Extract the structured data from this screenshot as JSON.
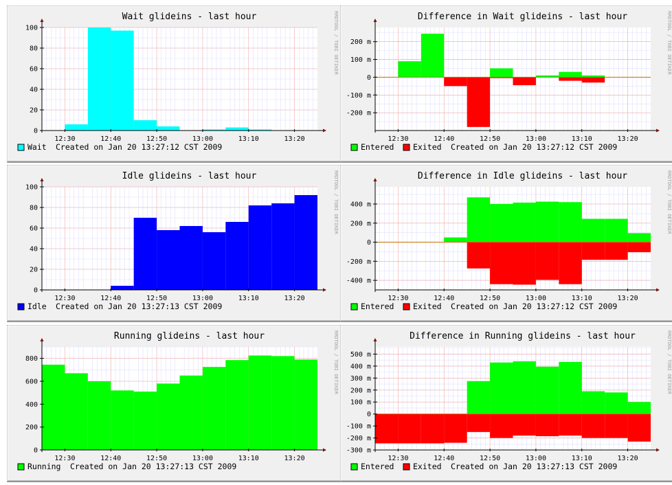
{
  "panels": [
    {
      "title": "Wait glideins - last hour",
      "type": "bar",
      "xlim": [
        0,
        60
      ],
      "ylim": [
        0,
        100
      ],
      "yticks": [
        0,
        20,
        40,
        60,
        80,
        100
      ],
      "x_tick_labels": [
        "12:30",
        "12:40",
        "12:50",
        "13:00",
        "13:10",
        "13:20"
      ],
      "series": [
        {
          "name": "Wait",
          "color": "#00ffff",
          "values": [
            0,
            6,
            100,
            97,
            10,
            4,
            0,
            1,
            3,
            1,
            0,
            0
          ]
        }
      ],
      "legend": [
        "Wait"
      ],
      "created": "Created on Jan 20 13:27:12 CST 2009"
    },
    {
      "title": "Difference in Wait glideins - last hour",
      "type": "bar",
      "xlim": [
        0,
        60
      ],
      "ylim": [
        -300,
        280
      ],
      "yticks": [
        -200,
        -100,
        0,
        100,
        200
      ],
      "ytick_labels": [
        "-200 m",
        "-100 m",
        "0",
        "100 m",
        "200 m"
      ],
      "x_tick_labels": [
        "12:30",
        "12:40",
        "12:50",
        "13:00",
        "13:10",
        "13:20"
      ],
      "series": [
        {
          "name": "Entered",
          "color": "#00ff00",
          "values": [
            0,
            90,
            245,
            0,
            0,
            50,
            0,
            10,
            30,
            10,
            0,
            0
          ]
        },
        {
          "name": "Exited",
          "color": "#ff0000",
          "values": [
            0,
            0,
            0,
            -50,
            -280,
            -5,
            -45,
            0,
            -20,
            -30,
            0,
            0
          ]
        }
      ],
      "legend": [
        "Entered",
        "Exited"
      ],
      "created": "Created on Jan 20 13:27:12 CST 2009"
    },
    {
      "title": "Idle glideins - last hour",
      "type": "bar",
      "xlim": [
        0,
        60
      ],
      "ylim": [
        0,
        100
      ],
      "yticks": [
        0,
        20,
        40,
        60,
        80,
        100
      ],
      "x_tick_labels": [
        "12:30",
        "12:40",
        "12:50",
        "13:00",
        "13:10",
        "13:20"
      ],
      "series": [
        {
          "name": "Idle",
          "color": "#0000ff",
          "values": [
            0,
            0,
            0,
            4,
            70,
            58,
            62,
            56,
            66,
            82,
            84,
            92
          ]
        }
      ],
      "legend": [
        "Idle"
      ],
      "created": "Created on Jan 20 13:27:13 CST 2009"
    },
    {
      "title": "Difference in Idle glideins - last hour",
      "type": "bar",
      "xlim": [
        0,
        60
      ],
      "ylim": [
        -500,
        580
      ],
      "yticks": [
        -400,
        -200,
        0,
        200,
        400
      ],
      "ytick_labels": [
        "-400 m",
        "-200 m",
        "0",
        "200 m",
        "400 m"
      ],
      "x_tick_labels": [
        "12:30",
        "12:40",
        "12:50",
        "13:00",
        "13:10",
        "13:20"
      ],
      "series": [
        {
          "name": "Entered",
          "color": "#00ff00",
          "values": [
            0,
            0,
            0,
            50,
            470,
            400,
            415,
            425,
            420,
            245,
            245,
            95
          ]
        },
        {
          "name": "Exited",
          "color": "#ff0000",
          "values": [
            0,
            0,
            0,
            0,
            -275,
            -440,
            -445,
            -395,
            -440,
            -185,
            -185,
            -105
          ]
        }
      ],
      "legend": [
        "Entered",
        "Exited"
      ],
      "created": "Created on Jan 20 13:27:12 CST 2009"
    },
    {
      "title": "Running glideins - last hour",
      "type": "bar",
      "xlim": [
        0,
        60
      ],
      "ylim": [
        0,
        900
      ],
      "yticks": [
        0,
        200,
        400,
        600,
        800
      ],
      "x_tick_labels": [
        "12:30",
        "12:40",
        "12:50",
        "13:00",
        "13:10",
        "13:20"
      ],
      "series": [
        {
          "name": "Running",
          "color": "#00ff00",
          "values": [
            745,
            670,
            600,
            520,
            510,
            580,
            650,
            725,
            785,
            825,
            820,
            790
          ]
        }
      ],
      "legend": [
        "Running"
      ],
      "created": "Created on Jan 20 13:27:13 CST 2009"
    },
    {
      "title": "Difference in Running glideins - last hour",
      "type": "bar",
      "xlim": [
        0,
        60
      ],
      "ylim": [
        -300,
        560
      ],
      "yticks": [
        -300,
        -200,
        -100,
        0,
        100,
        200,
        300,
        400,
        500
      ],
      "ytick_labels": [
        "-300 m",
        "-200 m",
        "-100 m",
        "0",
        "100 m",
        "200 m",
        "300 m",
        "400 m",
        "500 m"
      ],
      "x_tick_labels": [
        "12:30",
        "12:40",
        "12:50",
        "13:00",
        "13:10",
        "13:20"
      ],
      "series": [
        {
          "name": "Entered",
          "color": "#00ff00",
          "values": [
            0,
            0,
            0,
            0,
            275,
            430,
            440,
            395,
            435,
            190,
            180,
            100
          ]
        },
        {
          "name": "Exited",
          "color": "#ff0000",
          "values": [
            -245,
            -245,
            -245,
            -240,
            -150,
            -200,
            -180,
            -185,
            -180,
            -200,
            -200,
            -230
          ]
        }
      ],
      "legend": [
        "Entered",
        "Exited"
      ],
      "created": "Created on Jan 20 13:27:13 CST 2009"
    }
  ],
  "watermark": "RRDTOOL / TOBI OETIKER",
  "chart_data": [
    {
      "type": "bar",
      "title": "Wait glideins - last hour",
      "categories": [
        "12:25",
        "12:30",
        "12:35",
        "12:40",
        "12:45",
        "12:50",
        "12:55",
        "13:00",
        "13:05",
        "13:10",
        "13:15",
        "13:20"
      ],
      "series": [
        {
          "name": "Wait",
          "values": [
            0,
            6,
            100,
            97,
            10,
            4,
            0,
            1,
            3,
            1,
            0,
            0
          ]
        }
      ],
      "ylim": [
        0,
        100
      ]
    },
    {
      "type": "bar",
      "title": "Difference in Wait glideins - last hour",
      "categories": [
        "12:25",
        "12:30",
        "12:35",
        "12:40",
        "12:45",
        "12:50",
        "12:55",
        "13:00",
        "13:05",
        "13:10",
        "13:15",
        "13:20"
      ],
      "series": [
        {
          "name": "Entered",
          "values": [
            0,
            90,
            245,
            0,
            0,
            50,
            0,
            10,
            30,
            10,
            0,
            0
          ]
        },
        {
          "name": "Exited",
          "values": [
            0,
            0,
            0,
            -50,
            -280,
            -5,
            -45,
            0,
            -20,
            -30,
            0,
            0
          ]
        }
      ]
    },
    {
      "type": "bar",
      "title": "Idle glideins - last hour",
      "categories": [
        "12:25",
        "12:30",
        "12:35",
        "12:40",
        "12:45",
        "12:50",
        "12:55",
        "13:00",
        "13:05",
        "13:10",
        "13:15",
        "13:20"
      ],
      "series": [
        {
          "name": "Idle",
          "values": [
            0,
            0,
            0,
            4,
            70,
            58,
            62,
            56,
            66,
            82,
            84,
            92
          ]
        }
      ],
      "ylim": [
        0,
        100
      ]
    },
    {
      "type": "bar",
      "title": "Difference in Idle glideins - last hour",
      "categories": [
        "12:25",
        "12:30",
        "12:35",
        "12:40",
        "12:45",
        "12:50",
        "12:55",
        "13:00",
        "13:05",
        "13:10",
        "13:15",
        "13:20"
      ],
      "series": [
        {
          "name": "Entered",
          "values": [
            0,
            0,
            0,
            50,
            470,
            400,
            415,
            425,
            420,
            245,
            245,
            95
          ]
        },
        {
          "name": "Exited",
          "values": [
            0,
            0,
            0,
            0,
            -275,
            -440,
            -445,
            -395,
            -440,
            -185,
            -185,
            -105
          ]
        }
      ]
    },
    {
      "type": "bar",
      "title": "Running glideins - last hour",
      "categories": [
        "12:25",
        "12:30",
        "12:35",
        "12:40",
        "12:45",
        "12:50",
        "12:55",
        "13:00",
        "13:05",
        "13:10",
        "13:15",
        "13:20"
      ],
      "series": [
        {
          "name": "Running",
          "values": [
            745,
            670,
            600,
            520,
            510,
            580,
            650,
            725,
            785,
            825,
            820,
            790
          ]
        }
      ]
    },
    {
      "type": "bar",
      "title": "Difference in Running glideins - last hour",
      "categories": [
        "12:25",
        "12:30",
        "12:35",
        "12:40",
        "12:45",
        "12:50",
        "12:55",
        "13:00",
        "13:05",
        "13:10",
        "13:15",
        "13:20"
      ],
      "series": [
        {
          "name": "Entered",
          "values": [
            0,
            0,
            0,
            0,
            275,
            430,
            440,
            395,
            435,
            190,
            180,
            100
          ]
        },
        {
          "name": "Exited",
          "values": [
            -245,
            -245,
            -245,
            -240,
            -150,
            -200,
            -180,
            -185,
            -180,
            -200,
            -200,
            -230
          ]
        }
      ]
    }
  ]
}
